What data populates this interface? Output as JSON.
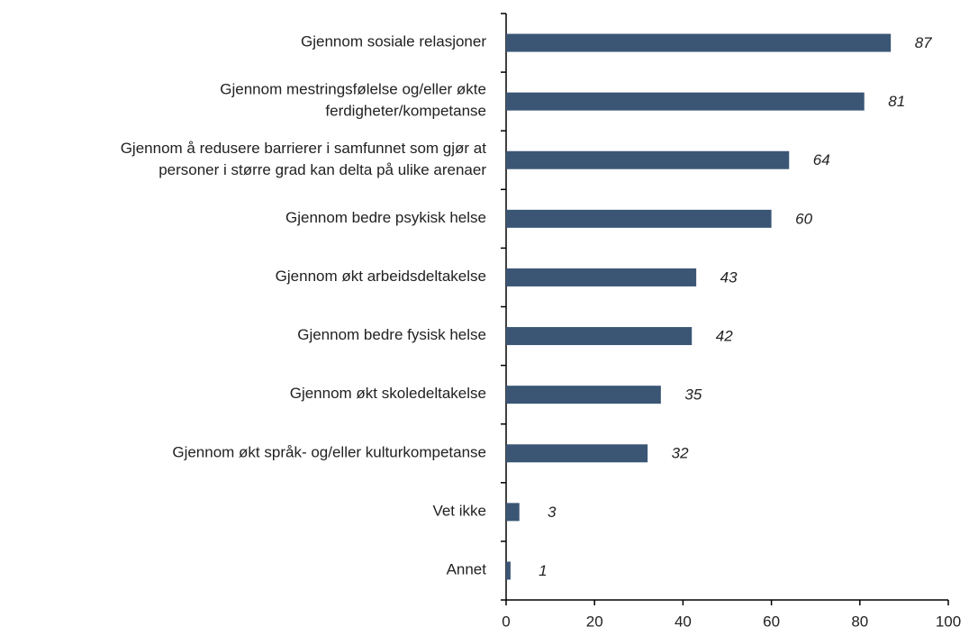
{
  "chart_data": {
    "type": "bar",
    "orientation": "horizontal",
    "categories": [
      "Gjennom sosiale relasjoner",
      "Gjennom mestringsfølelse og/eller økte\nferdigheter/kompetanse",
      "Gjennom å redusere barrierer i samfunnet som gjør at\npersoner i større grad kan delta på ulike arenaer",
      "Gjennom bedre psykisk helse",
      "Gjennom økt arbeidsdeltakelse",
      "Gjennom bedre fysisk helse",
      "Gjennom økt skoledeltakelse",
      "Gjennom økt språk- og/eller kulturkompetanse",
      "Vet ikke",
      "Annet"
    ],
    "values": [
      87,
      81,
      64,
      60,
      43,
      42,
      35,
      32,
      3,
      1
    ],
    "color": "#3b5675",
    "xlim": [
      0,
      100
    ],
    "xticks": [
      0,
      20,
      40,
      60,
      80,
      100
    ]
  }
}
